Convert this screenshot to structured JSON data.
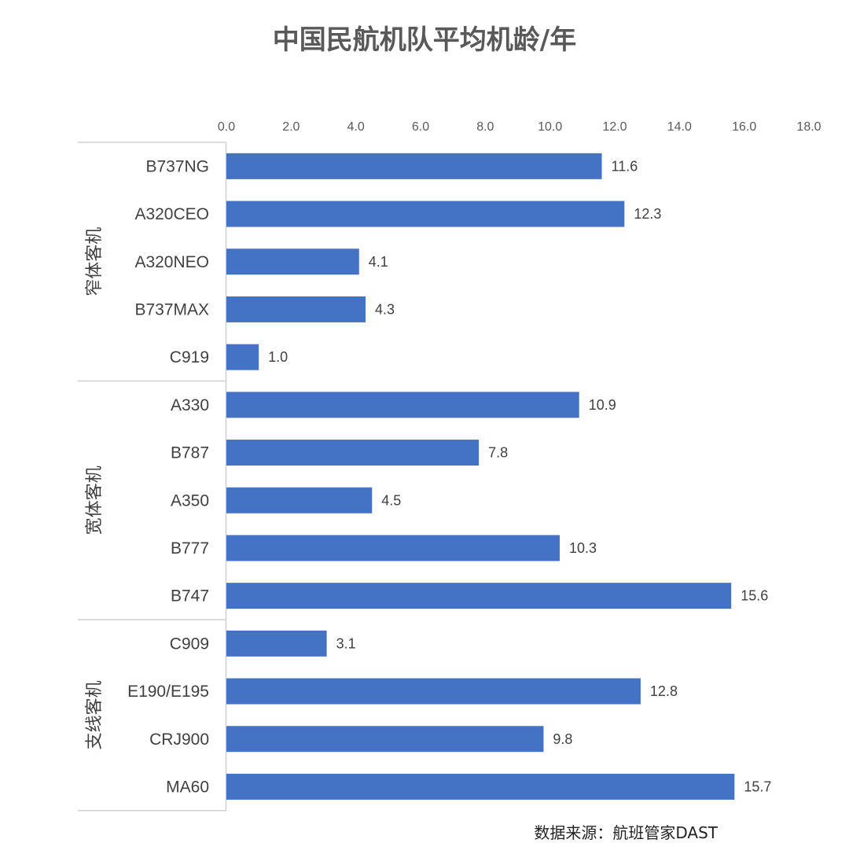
{
  "chart_data": {
    "type": "bar",
    "orientation": "horizontal",
    "title": "中国民航机队平均机龄/年",
    "source": "数据来源：航班管家DAST",
    "xlim": [
      0,
      18
    ],
    "xticks": [
      "0.0",
      "2.0",
      "4.0",
      "6.0",
      "8.0",
      "10.0",
      "12.0",
      "14.0",
      "16.0",
      "18.0"
    ],
    "xtick_values": [
      0,
      2,
      4,
      6,
      8,
      10,
      12,
      14,
      16,
      18
    ],
    "bar_color": "#4472C4",
    "grid": false,
    "groups": [
      {
        "name": "窄体客机",
        "categories": [
          "B737NG",
          "A320CEO",
          "A320NEO",
          "B737MAX",
          "C919"
        ],
        "values": [
          11.6,
          12.3,
          4.1,
          4.3,
          1.0
        ],
        "labels": [
          "11.6",
          "12.3",
          "4.1",
          "4.3",
          "1.0"
        ]
      },
      {
        "name": "宽体客机",
        "categories": [
          "A330",
          "B787",
          "A350",
          "B777",
          "B747"
        ],
        "values": [
          10.9,
          7.8,
          4.5,
          10.3,
          15.6
        ],
        "labels": [
          "10.9",
          "7.8",
          "4.5",
          "10.3",
          "15.6"
        ]
      },
      {
        "name": "支线客机",
        "categories": [
          "C909",
          "E190/E195",
          "CRJ900",
          "MA60"
        ],
        "values": [
          3.1,
          12.8,
          9.8,
          15.7
        ],
        "labels": [
          "3.1",
          "12.8",
          "9.8",
          "15.7"
        ]
      }
    ]
  }
}
